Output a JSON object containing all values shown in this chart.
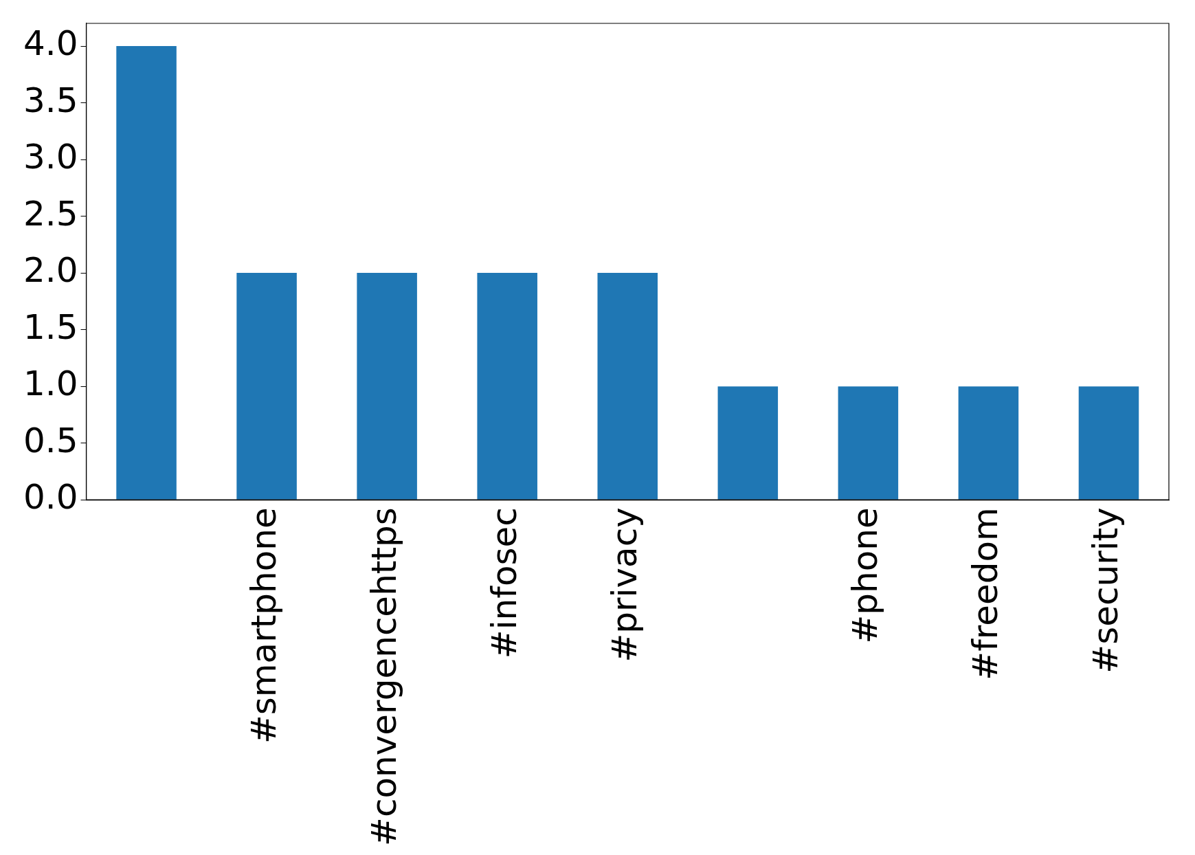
{
  "chart_data": {
    "type": "bar",
    "categories": [
      null,
      "#smartphone",
      "#convergencehttps",
      "#infosec",
      "#privacy",
      null,
      "#phone",
      "#freedom",
      "#security"
    ],
    "values": [
      4,
      2,
      2,
      2,
      2,
      1,
      1,
      1,
      1
    ],
    "color": "#1f77b4",
    "ylim": [
      0,
      4.2
    ],
    "yticks": [
      {
        "value": 0,
        "label": "0.0"
      },
      {
        "value": 0.5,
        "label": "0.5"
      },
      {
        "value": 1,
        "label": "1.0"
      },
      {
        "value": 1.5,
        "label": "1.5"
      },
      {
        "value": 2,
        "label": "2.0"
      },
      {
        "value": 2.5,
        "label": "2.5"
      },
      {
        "value": 3,
        "label": "3.0"
      },
      {
        "value": 3.5,
        "label": "3.5"
      },
      {
        "value": 4,
        "label": "4.0"
      }
    ],
    "grid": false,
    "legend": false
  }
}
